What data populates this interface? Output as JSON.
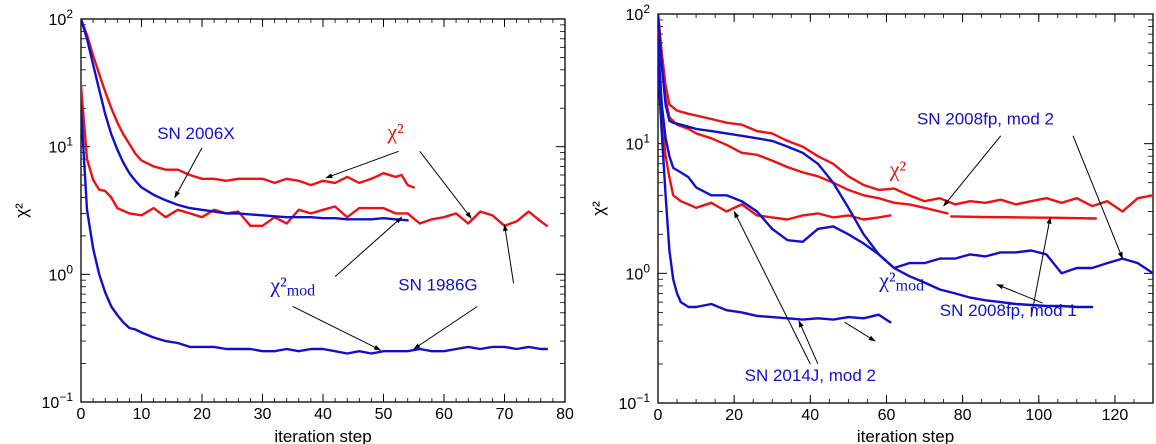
{
  "colors": {
    "red": "#ee1111",
    "blue": "#1010cc",
    "axis": "#000000"
  },
  "chart_data": [
    {
      "type": "line",
      "title": "",
      "xlabel": "iteration step",
      "ylabel": "χ²",
      "xlim": [
        0,
        80
      ],
      "ylim": [
        0.1,
        100
      ],
      "yscale": "log",
      "grid": false,
      "x_ticks": [
        "0",
        "10",
        "20",
        "30",
        "40",
        "50",
        "60",
        "70",
        "80"
      ],
      "y_ticks": [
        "10⁻¹",
        "10⁰",
        "10¹",
        "10²"
      ],
      "series": [
        {
          "color": "red",
          "x": [
            0,
            1,
            2,
            3,
            4,
            5,
            6,
            7,
            8,
            9,
            10,
            12,
            14,
            16,
            18,
            20,
            22,
            24,
            26,
            28,
            30,
            32,
            34,
            36,
            38,
            40,
            42,
            44,
            46,
            48,
            50,
            52,
            53,
            54,
            55
          ],
          "y": [
            100,
            75,
            52,
            37,
            27,
            20,
            15.5,
            12.5,
            10.5,
            8.8,
            7.8,
            7.0,
            6.6,
            6.6,
            6.0,
            5.6,
            5.6,
            5.4,
            5.6,
            5.6,
            5.6,
            5.2,
            5.6,
            5.4,
            5.0,
            5.4,
            5.2,
            5.8,
            5.2,
            5.6,
            6.2,
            5.8,
            6.0,
            5.0,
            4.8
          ]
        },
        {
          "color": "red",
          "x": [
            0,
            1,
            2,
            3,
            4,
            5,
            6,
            8,
            10,
            12,
            14,
            16,
            18,
            20,
            22,
            24,
            26,
            28,
            30,
            32,
            34,
            36,
            38,
            40,
            42,
            44,
            46,
            48,
            50,
            52,
            54,
            56,
            58,
            60,
            62,
            64,
            66,
            68,
            70,
            72,
            74,
            76,
            77
          ],
          "y": [
            30,
            8,
            5.5,
            4.6,
            4.5,
            4.0,
            3.3,
            3.0,
            2.9,
            3.3,
            2.8,
            3.2,
            3.0,
            2.8,
            3.2,
            3.0,
            3.1,
            2.4,
            2.4,
            2.8,
            2.5,
            3.2,
            3.0,
            3.2,
            3.4,
            2.8,
            3.3,
            3.3,
            3.3,
            3.0,
            3.0,
            2.5,
            2.7,
            2.8,
            3.0,
            2.5,
            3.1,
            2.9,
            2.4,
            2.6,
            3.1,
            2.6,
            2.4
          ]
        },
        {
          "color": "blue",
          "x": [
            0,
            1,
            2,
            3,
            4,
            5,
            6,
            7,
            8,
            9,
            10,
            12,
            14,
            16,
            18,
            20,
            22,
            24,
            26,
            28,
            30,
            32,
            34,
            36,
            38,
            40,
            42,
            44,
            46,
            48,
            50,
            52,
            54
          ],
          "y": [
            100,
            70,
            44,
            28,
            18,
            12.5,
            9.5,
            7.5,
            6.2,
            5.4,
            4.8,
            4.2,
            3.8,
            3.5,
            3.3,
            3.2,
            3.1,
            3.0,
            3.0,
            2.95,
            2.9,
            2.85,
            2.8,
            2.8,
            2.8,
            2.75,
            2.75,
            2.7,
            2.7,
            2.7,
            2.75,
            2.7,
            2.65
          ]
        },
        {
          "color": "blue",
          "x": [
            0,
            1,
            2,
            3,
            4,
            5,
            6,
            7,
            8,
            9,
            10,
            12,
            14,
            16,
            18,
            20,
            22,
            24,
            26,
            28,
            30,
            32,
            34,
            36,
            38,
            40,
            42,
            44,
            46,
            48,
            50,
            52,
            54,
            56,
            58,
            60,
            62,
            64,
            66,
            68,
            70,
            72,
            74,
            76,
            77
          ],
          "y": [
            20,
            3.2,
            1.6,
            1.0,
            0.72,
            0.56,
            0.48,
            0.42,
            0.38,
            0.37,
            0.35,
            0.32,
            0.3,
            0.29,
            0.27,
            0.27,
            0.27,
            0.26,
            0.26,
            0.26,
            0.25,
            0.25,
            0.26,
            0.25,
            0.26,
            0.26,
            0.25,
            0.24,
            0.25,
            0.24,
            0.25,
            0.25,
            0.25,
            0.26,
            0.25,
            0.25,
            0.26,
            0.27,
            0.26,
            0.27,
            0.27,
            0.26,
            0.27,
            0.26,
            0.26
          ]
        }
      ],
      "annotations": [
        {
          "text": "SN 2006X",
          "color": "blue",
          "font": "sans",
          "x": 19,
          "y": 11.5
        },
        {
          "text": "χ²",
          "color": "red",
          "font": "serif",
          "x": 52,
          "y": 11.5
        },
        {
          "text": "χ²",
          "sub": "mod",
          "color": "blue",
          "font": "serif",
          "x": 35,
          "y": 0.72
        },
        {
          "text": "SN 1986G",
          "color": "blue",
          "font": "sans",
          "x": 59,
          "y": 0.75
        }
      ],
      "arrows": [
        {
          "from": [
            20,
            9.8
          ],
          "to": [
            15.5,
            4.0
          ]
        },
        {
          "from": [
            52.5,
            9.2
          ],
          "to": [
            40.5,
            5.7
          ]
        },
        {
          "from": [
            56,
            9.2
          ],
          "to": [
            64.5,
            2.75
          ]
        },
        {
          "from": [
            42,
            0.96
          ],
          "to": [
            53,
            2.8
          ]
        },
        {
          "from": [
            35,
            0.56
          ],
          "to": [
            49.5,
            0.255
          ]
        },
        {
          "from": [
            65.5,
            0.56
          ],
          "to": [
            55,
            0.26
          ]
        },
        {
          "from": [
            71.5,
            0.85
          ],
          "to": [
            70,
            2.45
          ]
        }
      ]
    },
    {
      "type": "line",
      "title": "",
      "xlabel": "iteration step",
      "ylabel": "χ²",
      "xlim": [
        0,
        130
      ],
      "ylim": [
        0.1,
        100
      ],
      "yscale": "log",
      "grid": false,
      "x_ticks": [
        "0",
        "20",
        "40",
        "60",
        "80",
        "100",
        "120"
      ],
      "y_ticks": [
        "10⁻¹",
        "10⁰",
        "10¹",
        "10²"
      ],
      "series": [
        {
          "color": "red",
          "x": [
            0,
            1,
            2,
            3,
            5,
            8,
            10,
            14,
            18,
            22,
            26,
            30,
            34,
            38,
            42,
            46,
            50,
            54,
            58,
            62,
            66,
            70,
            74,
            78,
            82,
            86,
            90,
            94,
            98,
            102,
            106,
            110,
            114,
            118,
            122,
            126,
            130
          ],
          "y": [
            100,
            50,
            28,
            20,
            18,
            17,
            16.5,
            15.5,
            14.5,
            14,
            12.5,
            12,
            10.5,
            9.5,
            8.0,
            7.0,
            5.6,
            4.8,
            4.4,
            4.5,
            4.0,
            3.6,
            3.8,
            3.4,
            3.6,
            3.5,
            3.7,
            3.4,
            3.6,
            3.8,
            3.5,
            3.8,
            3.3,
            3.6,
            3.0,
            3.8,
            4.0
          ]
        },
        {
          "color": "red",
          "x": [
            0,
            1,
            2,
            3,
            5,
            8,
            10,
            14,
            18,
            22,
            26,
            30,
            34,
            38,
            42,
            46,
            50,
            54,
            58,
            62,
            66,
            70,
            74,
            76
          ],
          "y": [
            90,
            40,
            22,
            16,
            14,
            13,
            12,
            11,
            9.8,
            8.5,
            8.2,
            7.4,
            6.6,
            6.0,
            5.6,
            5.0,
            4.4,
            4.0,
            3.8,
            3.5,
            3.4,
            3.2,
            3.0,
            2.9
          ]
        },
        {
          "color": "red",
          "x": [
            0,
            1,
            2,
            3,
            4,
            6,
            8,
            10,
            14,
            18,
            22,
            26,
            30,
            34,
            38,
            42,
            46,
            50,
            54,
            58,
            61
          ],
          "y": [
            60,
            15,
            8,
            5.5,
            4.0,
            3.6,
            3.4,
            3.2,
            3.5,
            3.0,
            3.4,
            2.8,
            2.7,
            2.6,
            2.8,
            2.9,
            2.7,
            2.8,
            2.6,
            2.7,
            2.8
          ]
        },
        {
          "color": "red",
          "x": [
            77,
            85,
            95,
            105,
            115
          ],
          "y": [
            2.75,
            2.72,
            2.7,
            2.68,
            2.65
          ]
        },
        {
          "color": "blue",
          "x": [
            0,
            1,
            2,
            3,
            4,
            6,
            8,
            10,
            14,
            18,
            22,
            26,
            30,
            34,
            38,
            42,
            46,
            50,
            54,
            58,
            62,
            66,
            70,
            74,
            78,
            82,
            86,
            90,
            94,
            98,
            102,
            106,
            110,
            114
          ],
          "y": [
            100,
            40,
            20,
            15,
            14.5,
            14,
            13.5,
            13,
            12.5,
            12,
            11.5,
            11,
            10.5,
            9.5,
            8.5,
            7.0,
            5.0,
            3.2,
            2.0,
            1.4,
            1.1,
            0.95,
            0.85,
            0.75,
            0.7,
            0.65,
            0.62,
            0.6,
            0.58,
            0.57,
            0.56,
            0.56,
            0.55,
            0.55
          ]
        },
        {
          "color": "blue",
          "x": [
            0,
            1,
            2,
            3,
            4,
            6,
            8,
            10,
            14,
            18,
            22,
            26,
            30,
            34,
            38,
            42,
            46,
            50,
            54,
            58,
            62,
            66,
            70,
            74,
            78,
            82,
            86,
            90,
            94,
            98,
            102,
            106,
            110,
            114,
            118,
            122,
            126,
            130
          ],
          "y": [
            60,
            20,
            11,
            8,
            6.5,
            6.0,
            5.5,
            4.6,
            4.0,
            4.0,
            3.6,
            3.0,
            2.2,
            1.8,
            1.75,
            2.2,
            2.3,
            2.0,
            1.7,
            1.4,
            1.1,
            1.2,
            1.2,
            1.3,
            1.3,
            1.4,
            1.35,
            1.45,
            1.45,
            1.5,
            1.4,
            1.0,
            1.1,
            1.1,
            1.2,
            1.3,
            1.2,
            1.0
          ]
        },
        {
          "color": "blue",
          "x": [
            0,
            1,
            2,
            3,
            4,
            5,
            6,
            8,
            10,
            14,
            18,
            22,
            26,
            30,
            34,
            38,
            42,
            46,
            50,
            54,
            58,
            61
          ],
          "y": [
            40,
            12,
            4,
            1.5,
            0.9,
            0.7,
            0.6,
            0.55,
            0.55,
            0.58,
            0.52,
            0.5,
            0.47,
            0.46,
            0.45,
            0.44,
            0.45,
            0.44,
            0.46,
            0.45,
            0.48,
            0.42
          ]
        }
      ],
      "annotations": [
        {
          "text": "SN 2008fp, mod 2",
          "color": "blue",
          "font": "sans",
          "x": 86,
          "y": 14
        },
        {
          "text": "χ²",
          "color": "red",
          "font": "serif",
          "x": 63,
          "y": 5.6
        },
        {
          "text": "χ²",
          "sub": "mod",
          "color": "blue",
          "font": "serif",
          "x": 64,
          "y": 0.78
        },
        {
          "text": "SN 2008fp, mod 1",
          "color": "blue",
          "font": "sans",
          "x": 92,
          "y": 0.47
        },
        {
          "text": "SN 2014J, mod 2",
          "color": "blue",
          "font": "sans",
          "x": 40,
          "y": 0.148
        }
      ],
      "arrows": [
        {
          "from": [
            90,
            11.5
          ],
          "to": [
            75,
            3.3
          ]
        },
        {
          "from": [
            109,
            11.5
          ],
          "to": [
            122,
            1.3
          ]
        },
        {
          "from": [
            101,
            0.59
          ],
          "to": [
            89,
            0.82
          ]
        },
        {
          "from": [
            98,
            0.46
          ],
          "to": [
            103,
            2.7
          ]
        },
        {
          "from": [
            49,
            0.42
          ],
          "to": [
            57,
            0.3
          ]
        },
        {
          "from": [
            40,
            0.2
          ],
          "to": [
            20,
            3.0
          ]
        },
        {
          "from": [
            42,
            0.2
          ],
          "to": [
            37,
            0.43
          ]
        }
      ]
    }
  ]
}
